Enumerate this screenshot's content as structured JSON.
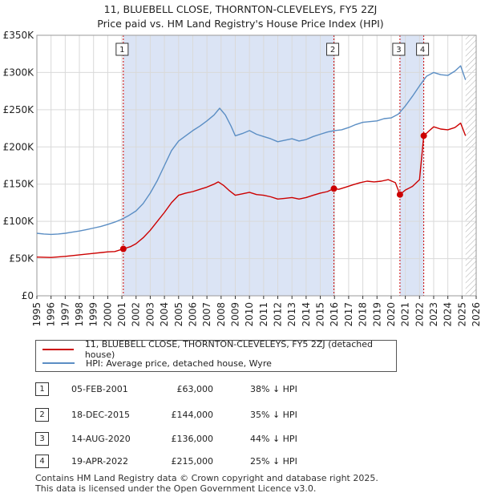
{
  "title_line1": "11, BLUEBELL CLOSE, THORNTON-CLEVELEYS, FY5 2ZJ",
  "title_line2": "Price paid vs. HM Land Registry's House Price Index (HPI)",
  "colors": {
    "property": "#cc0000",
    "hpi": "#5b8ec4",
    "shade": "#dbe4f5",
    "grid": "#d9d9d9",
    "axis": "#222222"
  },
  "chart_data": {
    "type": "line",
    "xlim": [
      1995,
      2026
    ],
    "ylim": [
      0,
      350000
    ],
    "xticks": [
      "1995",
      "1996",
      "1997",
      "1998",
      "1999",
      "2000",
      "2001",
      "2002",
      "2003",
      "2004",
      "2005",
      "2006",
      "2007",
      "2008",
      "2009",
      "2010",
      "2011",
      "2012",
      "2013",
      "2014",
      "2015",
      "2016",
      "2017",
      "2018",
      "2019",
      "2020",
      "2021",
      "2022",
      "2023",
      "2024",
      "2025",
      "2026"
    ],
    "yticks": [
      {
        "value": 0,
        "label": "£0"
      },
      {
        "value": 50000,
        "label": "£50K"
      },
      {
        "value": 100000,
        "label": "£100K"
      },
      {
        "value": 150000,
        "label": "£150K"
      },
      {
        "value": 200000,
        "label": "£200K"
      },
      {
        "value": 250000,
        "label": "£250K"
      },
      {
        "value": 300000,
        "label": "£300K"
      },
      {
        "value": 350000,
        "label": "£350K"
      }
    ],
    "shaded_ranges": [
      [
        2001.1,
        2015.96
      ],
      [
        2020.62,
        2022.3
      ]
    ],
    "future_hatch_from": 2025.25,
    "series": [
      {
        "name": "11, BLUEBELL CLOSE, THORNTON-CLEVELEYS, FY5 2ZJ (detached house)",
        "color": "#cc0000",
        "points": [
          [
            1995,
            52000
          ],
          [
            1996,
            51500
          ],
          [
            1997,
            53000
          ],
          [
            1998,
            55000
          ],
          [
            1999,
            57000
          ],
          [
            2000,
            59000
          ],
          [
            2000.5,
            59500
          ],
          [
            2001.1,
            63000
          ],
          [
            2001.6,
            66000
          ],
          [
            2002,
            70000
          ],
          [
            2002.5,
            78000
          ],
          [
            2003,
            88000
          ],
          [
            2003.5,
            100000
          ],
          [
            2004,
            112000
          ],
          [
            2004.5,
            125000
          ],
          [
            2005,
            135000
          ],
          [
            2005.5,
            138000
          ],
          [
            2006,
            140000
          ],
          [
            2006.5,
            143000
          ],
          [
            2007,
            146000
          ],
          [
            2007.5,
            150000
          ],
          [
            2007.8,
            153000
          ],
          [
            2008.2,
            148000
          ],
          [
            2008.6,
            141000
          ],
          [
            2009,
            135000
          ],
          [
            2009.5,
            137000
          ],
          [
            2010,
            139000
          ],
          [
            2010.5,
            136000
          ],
          [
            2011,
            135000
          ],
          [
            2011.5,
            133000
          ],
          [
            2012,
            130000
          ],
          [
            2012.5,
            131000
          ],
          [
            2013,
            132000
          ],
          [
            2013.5,
            130000
          ],
          [
            2014,
            132000
          ],
          [
            2014.5,
            135000
          ],
          [
            2015,
            138000
          ],
          [
            2015.5,
            140000
          ],
          [
            2015.96,
            144000
          ],
          [
            2016.3,
            143000
          ],
          [
            2016.8,
            146000
          ],
          [
            2017.3,
            149000
          ],
          [
            2017.8,
            152000
          ],
          [
            2018.3,
            154000
          ],
          [
            2018.8,
            153000
          ],
          [
            2019.3,
            154000
          ],
          [
            2019.8,
            156000
          ],
          [
            2020.3,
            152000
          ],
          [
            2020.62,
            136000
          ],
          [
            2021,
            142000
          ],
          [
            2021.5,
            147000
          ],
          [
            2022,
            156000
          ],
          [
            2022.3,
            215000
          ],
          [
            2022.7,
            222000
          ],
          [
            2023,
            227000
          ],
          [
            2023.5,
            224000
          ],
          [
            2024,
            223000
          ],
          [
            2024.5,
            226000
          ],
          [
            2024.9,
            232000
          ],
          [
            2025.25,
            215000
          ]
        ]
      },
      {
        "name": "HPI: Average price, detached house, Wyre",
        "color": "#5b8ec4",
        "points": [
          [
            1995,
            84000
          ],
          [
            1995.5,
            83000
          ],
          [
            1996,
            82500
          ],
          [
            1996.5,
            83000
          ],
          [
            1997,
            84000
          ],
          [
            1997.5,
            85500
          ],
          [
            1998,
            87000
          ],
          [
            1998.5,
            89000
          ],
          [
            1999,
            91000
          ],
          [
            1999.5,
            93000
          ],
          [
            2000,
            96000
          ],
          [
            2000.5,
            99000
          ],
          [
            2001,
            103000
          ],
          [
            2001.5,
            108000
          ],
          [
            2002,
            114000
          ],
          [
            2002.5,
            124000
          ],
          [
            2003,
            138000
          ],
          [
            2003.5,
            155000
          ],
          [
            2004,
            175000
          ],
          [
            2004.5,
            195000
          ],
          [
            2005,
            208000
          ],
          [
            2005.5,
            215000
          ],
          [
            2006,
            222000
          ],
          [
            2006.5,
            228000
          ],
          [
            2007,
            235000
          ],
          [
            2007.5,
            243000
          ],
          [
            2007.9,
            252000
          ],
          [
            2008.3,
            243000
          ],
          [
            2008.7,
            228000
          ],
          [
            2009,
            215000
          ],
          [
            2009.5,
            218000
          ],
          [
            2010,
            222000
          ],
          [
            2010.5,
            217000
          ],
          [
            2011,
            214000
          ],
          [
            2011.5,
            211000
          ],
          [
            2012,
            207000
          ],
          [
            2012.5,
            209000
          ],
          [
            2013,
            211000
          ],
          [
            2013.5,
            208000
          ],
          [
            2014,
            210000
          ],
          [
            2014.5,
            214000
          ],
          [
            2015,
            217000
          ],
          [
            2015.5,
            220000
          ],
          [
            2016,
            222000
          ],
          [
            2016.5,
            223000
          ],
          [
            2017,
            226000
          ],
          [
            2017.5,
            230000
          ],
          [
            2018,
            233000
          ],
          [
            2018.5,
            234000
          ],
          [
            2019,
            235000
          ],
          [
            2019.5,
            238000
          ],
          [
            2020,
            239000
          ],
          [
            2020.5,
            244000
          ],
          [
            2021,
            255000
          ],
          [
            2021.5,
            268000
          ],
          [
            2022,
            282000
          ],
          [
            2022.5,
            295000
          ],
          [
            2023,
            300000
          ],
          [
            2023.5,
            297000
          ],
          [
            2024,
            296000
          ],
          [
            2024.5,
            302000
          ],
          [
            2024.9,
            309000
          ],
          [
            2025.25,
            290000
          ]
        ]
      }
    ],
    "transactions": [
      {
        "label": "1",
        "x": 2001.1,
        "y": 63000
      },
      {
        "label": "2",
        "x": 2015.96,
        "y": 144000
      },
      {
        "label": "3",
        "x": 2020.62,
        "y": 136000
      },
      {
        "label": "4",
        "x": 2022.3,
        "y": 215000
      }
    ]
  },
  "legend": {
    "property_label": "11, BLUEBELL CLOSE, THORNTON-CLEVELEYS, FY5 2ZJ (detached house)",
    "hpi_label": "HPI: Average price, detached house, Wyre"
  },
  "table": [
    {
      "num": "1",
      "date": "05-FEB-2001",
      "price": "£63,000",
      "hpi": "38% ↓ HPI"
    },
    {
      "num": "2",
      "date": "18-DEC-2015",
      "price": "£144,000",
      "hpi": "35% ↓ HPI"
    },
    {
      "num": "3",
      "date": "14-AUG-2020",
      "price": "£136,000",
      "hpi": "44% ↓ HPI"
    },
    {
      "num": "4",
      "date": "19-APR-2022",
      "price": "£215,000",
      "hpi": "25% ↓ HPI"
    }
  ],
  "footer_line1": "Contains HM Land Registry data © Crown copyright and database right 2025.",
  "footer_line2": "This data is licensed under the Open Government Licence v3.0."
}
